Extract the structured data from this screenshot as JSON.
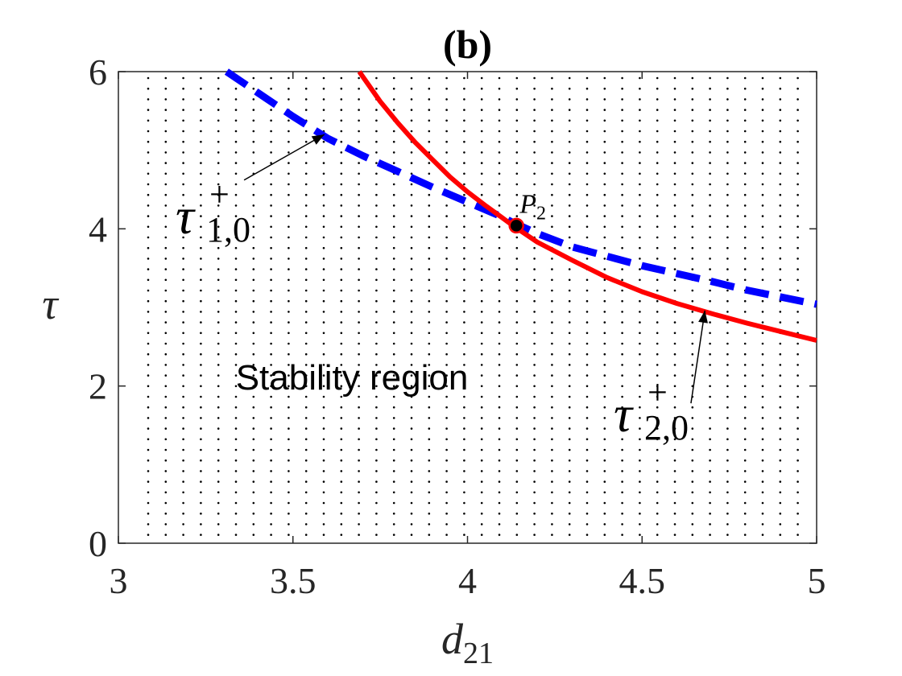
{
  "chart_data": {
    "type": "line",
    "title": "(b)",
    "xlabel": {
      "base": "d",
      "sub": "21"
    },
    "ylabel": "τ",
    "xlim": [
      3,
      5
    ],
    "ylim": [
      0,
      6
    ],
    "xticks": [
      3,
      3.5,
      4,
      4.5,
      5
    ],
    "xtick_labels": [
      "3",
      "3.5",
      "4",
      "4.5",
      "5"
    ],
    "yticks": [
      0,
      2,
      4,
      6
    ],
    "ytick_labels": [
      "0",
      "2",
      "4",
      "6"
    ],
    "series": [
      {
        "name": "tau_1_0_plus",
        "style": "dashed",
        "color": "#0000ff",
        "x": [
          3.31,
          3.4,
          3.5,
          3.6,
          3.7,
          3.8,
          3.9,
          4.0,
          4.1,
          4.13,
          4.2,
          4.3,
          4.4,
          4.5,
          4.6,
          4.7,
          4.8,
          4.9,
          5.0
        ],
        "y": [
          6.0,
          5.73,
          5.43,
          5.15,
          4.93,
          4.73,
          4.53,
          4.34,
          4.15,
          4.08,
          3.94,
          3.77,
          3.65,
          3.53,
          3.43,
          3.33,
          3.22,
          3.13,
          3.04
        ]
      },
      {
        "name": "tau_2_0_plus",
        "style": "solid",
        "color": "#ff0000",
        "x": [
          3.69,
          3.75,
          3.8,
          3.85,
          3.9,
          3.95,
          4.0,
          4.05,
          4.1,
          4.13,
          4.2,
          4.3,
          4.4,
          4.5,
          4.6,
          4.7,
          4.8,
          4.9,
          5.0
        ],
        "y": [
          6.0,
          5.62,
          5.35,
          5.1,
          4.88,
          4.66,
          4.47,
          4.3,
          4.14,
          4.04,
          3.83,
          3.6,
          3.38,
          3.2,
          3.05,
          2.92,
          2.8,
          2.69,
          2.58
        ]
      }
    ],
    "points": [
      {
        "label": "P",
        "label_sub": "2",
        "x": 4.14,
        "y": 4.04,
        "color": "#000000",
        "edge": "#ff0000"
      }
    ],
    "annotations": [
      {
        "main": "τ",
        "sup": "+",
        "sub": "1,0",
        "arrow_to": [
          3.59,
          5.2
        ],
        "arrow_from": [
          3.36,
          4.62
        ]
      },
      {
        "main": "τ",
        "sup": "+",
        "sub": "2,0",
        "arrow_to": [
          4.68,
          2.96
        ],
        "arrow_from": [
          4.64,
          1.78
        ]
      }
    ],
    "region_label": "Stability region",
    "region_pattern": "dotted",
    "grid": false
  }
}
